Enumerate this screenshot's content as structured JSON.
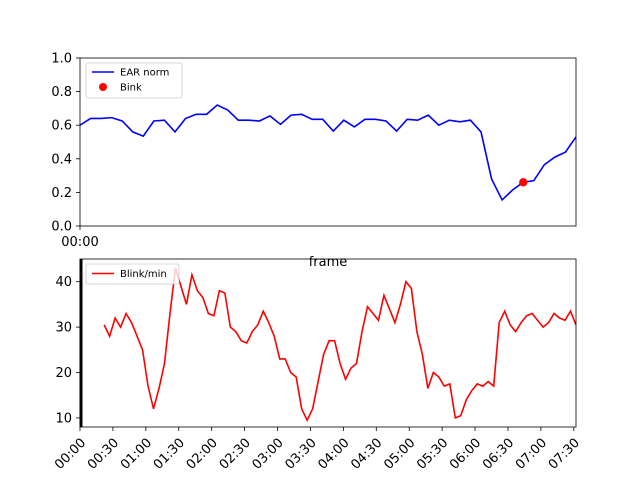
{
  "chart_data": [
    {
      "type": "line",
      "xlabel": "frame",
      "x_tick_labels": [
        "00:00"
      ],
      "ylim": [
        0.0,
        1.0
      ],
      "y_ticks": [
        "0.0",
        "0.2",
        "0.4",
        "0.6",
        "0.8",
        "1.0"
      ],
      "legend_position": "top-left",
      "grid": false,
      "series": [
        {
          "name": "EAR norm",
          "color": "#0000ff",
          "values": [
            0.6,
            0.64,
            0.64,
            0.645,
            0.625,
            0.56,
            0.535,
            0.625,
            0.63,
            0.56,
            0.64,
            0.665,
            0.665,
            0.72,
            0.69,
            0.63,
            0.63,
            0.625,
            0.655,
            0.605,
            0.66,
            0.665,
            0.635,
            0.635,
            0.565,
            0.63,
            0.59,
            0.635,
            0.635,
            0.625,
            0.565,
            0.635,
            0.63,
            0.66,
            0.6,
            0.63,
            0.62,
            0.63,
            0.56,
            0.28,
            0.155,
            0.215,
            0.26,
            0.27,
            0.365,
            0.41,
            0.44,
            0.53
          ]
        }
      ],
      "markers": [
        {
          "name": "Bink",
          "color": "#ff0000",
          "index": 42,
          "value": 0.26
        }
      ]
    },
    {
      "type": "line",
      "x_tick_labels": [
        "00:00",
        "00:30",
        "01:00",
        "01:30",
        "02:00",
        "02:30",
        "03:00",
        "03:30",
        "04:00",
        "04:30",
        "05:00",
        "05:30",
        "06:00",
        "06:30",
        "07:00",
        "07:30"
      ],
      "x_range_minutes": [
        0,
        452
      ],
      "ylim": [
        8,
        45
      ],
      "y_ticks": [
        "10",
        "20",
        "30",
        "40"
      ],
      "legend_position": "top-left",
      "grid": false,
      "series": [
        {
          "name": "Blink/min",
          "color": "#ff0000",
          "x": [
            22,
            27,
            32,
            37,
            42,
            47,
            52,
            57,
            62,
            67,
            72,
            77,
            82,
            87,
            92,
            97,
            102,
            107,
            112,
            117,
            122,
            127,
            132,
            137,
            142,
            147,
            152,
            157,
            162,
            167,
            172,
            177,
            182,
            187,
            192,
            197,
            202,
            207,
            212,
            217,
            222,
            227,
            232,
            237,
            242,
            247,
            252,
            257,
            262,
            267,
            272,
            277,
            282,
            287,
            292,
            297,
            302,
            307,
            312,
            317,
            322,
            327,
            332,
            337,
            342,
            347,
            352,
            357,
            362,
            367,
            372,
            377,
            382,
            387,
            392,
            397,
            402,
            407,
            412,
            417,
            422,
            427,
            432,
            437,
            442,
            447,
            452
          ],
          "values": [
            30.5,
            28.0,
            32.0,
            30.0,
            33.0,
            31.0,
            28.0,
            25.0,
            17.0,
            12.0,
            16.5,
            22.0,
            33.0,
            43.0,
            39.0,
            35.0,
            41.5,
            38.0,
            36.5,
            33.0,
            32.5,
            38.0,
            37.5,
            30.0,
            29.0,
            27.0,
            26.5,
            29.0,
            30.5,
            33.5,
            31.0,
            28.0,
            23.0,
            23.0,
            20.0,
            19.0,
            12.0,
            9.5,
            12.0,
            18.0,
            24.0,
            27.0,
            27.0,
            22.0,
            18.5,
            21.0,
            22.0,
            29.0,
            34.5,
            33.0,
            31.5,
            37.0,
            34.0,
            31.0,
            35.0,
            40.0,
            38.5,
            29.0,
            24.0,
            16.5,
            20.0,
            19.0,
            17.0,
            17.5,
            10.0,
            10.5,
            14.0,
            16.0,
            17.5,
            17.0,
            18.0,
            17.0,
            31.0,
            33.5,
            30.5,
            29.0,
            31.0,
            32.5,
            33.0,
            31.5,
            30.0,
            31.0,
            33.0,
            32.0,
            31.5,
            33.5,
            30.5
          ]
        }
      ]
    }
  ]
}
